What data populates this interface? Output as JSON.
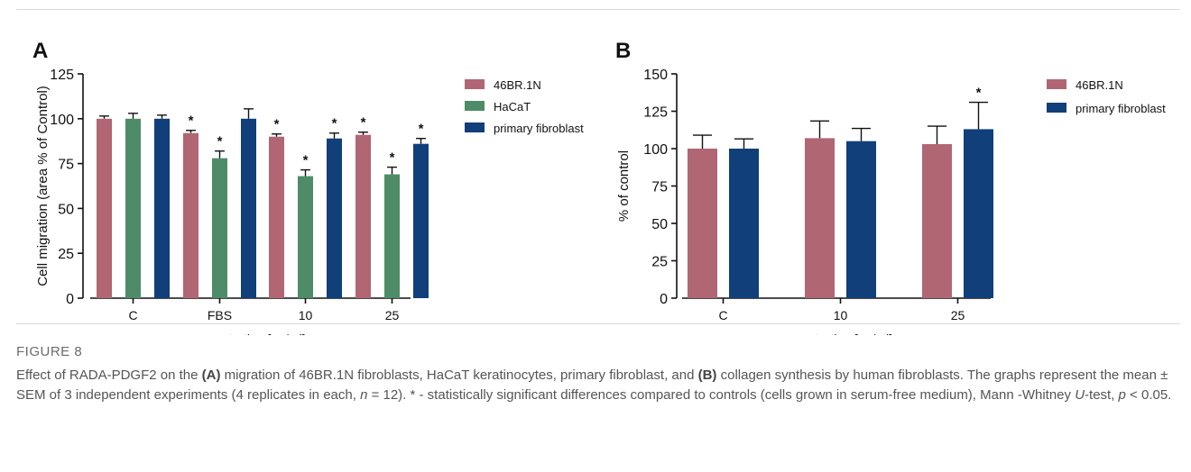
{
  "chart_data": [
    {
      "panel": "A",
      "type": "bar",
      "ylabel": "Cell migration (area % of Control)",
      "xlabel": "concentration [ug/ml]",
      "categories": [
        "C",
        "FBS",
        "10",
        "25"
      ],
      "ylim": [
        0,
        125
      ],
      "yticks": [
        0,
        25,
        50,
        75,
        100,
        125
      ],
      "series": [
        {
          "name": "46BR.1N",
          "color": "#b06673",
          "values": [
            100,
            92,
            90,
            91
          ],
          "errors": [
            1.5,
            1.5,
            1.5,
            1.5
          ],
          "sig": [
            false,
            true,
            true,
            true
          ]
        },
        {
          "name": "HaCaT",
          "color": "#4e8c67",
          "values": [
            100,
            78,
            68,
            69
          ],
          "errors": [
            3,
            4,
            3.5,
            4
          ],
          "sig": [
            false,
            true,
            true,
            true
          ]
        },
        {
          "name": "primary fibroblast",
          "color": "#103f7a",
          "values": [
            100,
            100,
            89,
            86
          ],
          "errors": [
            2,
            5.5,
            3,
            3
          ],
          "sig": [
            false,
            false,
            true,
            true
          ]
        }
      ],
      "legend": "right",
      "significance_marker": "*"
    },
    {
      "panel": "B",
      "type": "bar",
      "ylabel": "% of control",
      "xlabel": "concentration [ug/ml]",
      "categories": [
        "C",
        "10",
        "25"
      ],
      "ylim": [
        0,
        150
      ],
      "yticks": [
        0,
        25,
        50,
        75,
        100,
        125,
        150
      ],
      "series": [
        {
          "name": "46BR.1N",
          "color": "#b06673",
          "values": [
            100,
            107,
            103
          ],
          "errors": [
            9,
            11.5,
            12
          ],
          "sig": [
            false,
            false,
            false
          ]
        },
        {
          "name": "primary fibroblast",
          "color": "#103f7a",
          "values": [
            100,
            105,
            113
          ],
          "errors": [
            6.5,
            8.5,
            18
          ],
          "sig": [
            false,
            false,
            true
          ]
        }
      ],
      "legend": "right",
      "significance_marker": "*"
    }
  ],
  "caption": {
    "figure_label": "FIGURE 8",
    "p1": "Effect of RADA-PDGF2 on the ",
    "p2": "(A)",
    "p3": " migration of 46BR.1N fibroblasts, HaCaT keratinocytes, primary fibroblast, and ",
    "p4": "(B)",
    "p5": " collagen synthesis by human fibroblasts. The graphs represent the mean ± SEM of 3 independent experiments (4 replicates in each, ",
    "p6": "n",
    "p7": " = 12). * - statistically significant differences compared to controls (cells grown in serum-free medium), Mann -Whitney ",
    "p8": "U",
    "p9": "-test, ",
    "p10": "p",
    "p11": " < 0.05."
  }
}
